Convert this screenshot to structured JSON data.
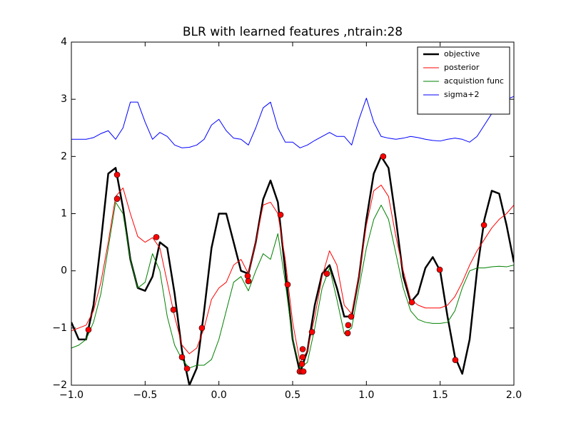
{
  "chart_data": {
    "type": "line",
    "title": "BLR with learned features ,ntrain:28",
    "x": [
      -1,
      -0.95,
      -0.9,
      -0.85,
      -0.8,
      -0.75,
      -0.7,
      -0.65,
      -0.6,
      -0.55,
      -0.5,
      -0.45,
      -0.4,
      -0.35,
      -0.3,
      -0.25,
      -0.2,
      -0.15,
      -0.1,
      -0.05,
      0,
      0.05,
      0.1,
      0.15,
      0.2,
      0.25,
      0.3,
      0.35,
      0.4,
      0.45,
      0.5,
      0.55,
      0.6,
      0.65,
      0.7,
      0.75,
      0.8,
      0.85,
      0.9,
      0.95,
      1,
      1.05,
      1.1,
      1.15,
      1.2,
      1.25,
      1.3,
      1.35,
      1.4,
      1.45,
      1.5,
      1.55,
      1.6,
      1.65,
      1.7,
      1.75,
      1.8,
      1.85,
      1.9,
      1.95,
      2
    ],
    "series": [
      {
        "name": "objective",
        "color": "#000000",
        "linewidth": 2.5,
        "values": [
          -0.9,
          -1.2,
          -1.2,
          -0.6,
          0.5,
          1.7,
          1.8,
          1.1,
          0.2,
          -0.3,
          -0.35,
          -0.1,
          0.5,
          0.4,
          -0.4,
          -1.4,
          -2.0,
          -1.7,
          -0.7,
          0.4,
          1.0,
          1.0,
          0.5,
          0.0,
          -0.05,
          0.5,
          1.25,
          1.58,
          1.2,
          0.0,
          -1.2,
          -1.78,
          -1.4,
          -0.6,
          -0.05,
          0.1,
          -0.3,
          -0.8,
          -0.8,
          -0.1,
          0.9,
          1.7,
          2.0,
          1.8,
          0.9,
          -0.1,
          -0.55,
          -0.4,
          0.05,
          0.24,
          0.0,
          -0.8,
          -1.5,
          -1.8,
          -1.2,
          0.0,
          0.9,
          1.4,
          1.35,
          0.8,
          0.15
        ]
      },
      {
        "name": "posterior",
        "color": "#ff0000",
        "linewidth": 1,
        "values": [
          -1.05,
          -1.0,
          -0.95,
          -0.7,
          -0.2,
          0.5,
          1.3,
          1.45,
          1.0,
          0.6,
          0.5,
          0.58,
          0.4,
          -0.2,
          -0.8,
          -1.3,
          -1.45,
          -1.35,
          -1.0,
          -0.5,
          -0.3,
          -0.2,
          0.1,
          0.2,
          -0.05,
          0.5,
          1.15,
          1.2,
          1.0,
          0.2,
          -0.9,
          -1.6,
          -1.4,
          -0.8,
          -0.1,
          0.35,
          0.1,
          -0.6,
          -0.75,
          -0.1,
          0.8,
          1.4,
          1.5,
          1.3,
          0.6,
          0.0,
          -0.5,
          -0.6,
          -0.65,
          -0.65,
          -0.65,
          -0.6,
          -0.45,
          -0.2,
          0.1,
          0.35,
          0.55,
          0.75,
          0.9,
          1.0,
          1.15
        ]
      },
      {
        "name": "acquistion func",
        "color": "#008000",
        "linewidth": 1,
        "values": [
          -1.35,
          -1.3,
          -1.2,
          -0.9,
          -0.4,
          0.4,
          1.2,
          1.0,
          0.2,
          -0.3,
          -0.2,
          0.3,
          0.0,
          -0.8,
          -1.3,
          -1.55,
          -1.7,
          -1.65,
          -1.65,
          -1.55,
          -1.2,
          -0.7,
          -0.2,
          -0.1,
          -0.35,
          0.0,
          0.3,
          0.2,
          0.65,
          -0.2,
          -1.2,
          -1.7,
          -1.6,
          -1.0,
          -0.3,
          0.05,
          -0.5,
          -1.1,
          -1.0,
          -0.3,
          0.4,
          0.9,
          1.15,
          0.9,
          0.3,
          -0.3,
          -0.7,
          -0.85,
          -0.9,
          -0.92,
          -0.92,
          -0.9,
          -0.7,
          -0.3,
          0.0,
          0.05,
          0.05,
          0.07,
          0.08,
          0.07,
          0.1
        ]
      },
      {
        "name": "sigma+2",
        "color": "#0000ff",
        "linewidth": 1,
        "values": [
          2.3,
          2.3,
          2.3,
          2.33,
          2.4,
          2.45,
          2.3,
          2.5,
          2.95,
          2.95,
          2.6,
          2.3,
          2.42,
          2.35,
          2.2,
          2.15,
          2.16,
          2.2,
          2.3,
          2.55,
          2.65,
          2.45,
          2.32,
          2.3,
          2.2,
          2.5,
          2.85,
          2.95,
          2.5,
          2.25,
          2.25,
          2.15,
          2.2,
          2.28,
          2.35,
          2.42,
          2.35,
          2.35,
          2.2,
          2.65,
          3.02,
          2.6,
          2.35,
          2.32,
          2.3,
          2.32,
          2.35,
          2.33,
          2.3,
          2.28,
          2.27,
          2.3,
          2.32,
          2.3,
          2.25,
          2.35,
          2.55,
          2.75,
          2.9,
          3.0,
          3.05
        ]
      }
    ],
    "points": {
      "color": "#ff0000",
      "x": [
        -0.884,
        -0.69,
        -0.69,
        -0.424,
        -0.308,
        -0.25,
        -0.216,
        -0.115,
        0.195,
        0.2,
        0.418,
        0.466,
        0.548,
        0.563,
        0.573,
        0.568,
        0.568,
        0.563,
        0.631,
        0.732,
        0.873,
        0.877,
        0.897,
        1.114,
        1.308,
        1.497,
        1.603,
        1.797
      ],
      "values": [
        -1.03,
        1.68,
        1.26,
        0.59,
        -0.68,
        -1.51,
        -1.71,
        -1.0,
        -0.09,
        -0.18,
        0.98,
        -0.24,
        -1.76,
        -1.76,
        -1.76,
        -1.37,
        -1.51,
        -1.63,
        -1.07,
        -0.05,
        -1.09,
        -0.95,
        -0.8,
        2.0,
        -0.55,
        0.02,
        -1.56,
        0.8
      ]
    },
    "xlim": [
      -1,
      2
    ],
    "ylim": [
      -2,
      4
    ],
    "xticks": [
      {
        "value": -1,
        "label": "−1.0"
      },
      {
        "value": -0.5,
        "label": "−0.5"
      },
      {
        "value": 0,
        "label": "0.0"
      },
      {
        "value": 0.5,
        "label": "0.5"
      },
      {
        "value": 1,
        "label": "1.0"
      },
      {
        "value": 1.5,
        "label": "1.5"
      },
      {
        "value": 2,
        "label": "2.0"
      }
    ],
    "yticks": [
      {
        "value": -2,
        "label": "−2"
      },
      {
        "value": -1,
        "label": "−1"
      },
      0,
      1,
      2,
      3,
      4
    ],
    "grid": false,
    "legend": "upper right"
  }
}
